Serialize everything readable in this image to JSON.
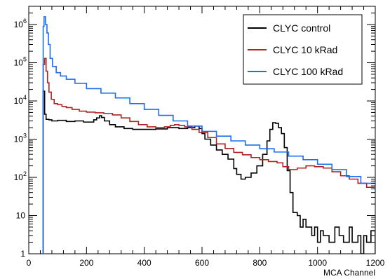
{
  "chart_data": {
    "type": "line",
    "xlabel": "MCA Channel",
    "ylabel": "",
    "xlim": [
      0,
      1200
    ],
    "ylim": [
      1,
      3000000
    ],
    "yscale": "log",
    "grid": false,
    "legend_position": "top-right",
    "x_ticks": [
      0,
      200,
      400,
      600,
      800,
      1000,
      1200
    ],
    "x_tick_labels": [
      "0",
      "200",
      "400",
      "600",
      "800",
      "1000",
      "1200"
    ],
    "y_ticks": [
      1,
      10,
      100,
      1000,
      10000,
      100000,
      1000000
    ],
    "y_tick_labels": [
      {
        "base": "1",
        "exp": ""
      },
      {
        "base": "10",
        "exp": ""
      },
      {
        "base": "10",
        "exp": "2"
      },
      {
        "base": "10",
        "exp": "3"
      },
      {
        "base": "10",
        "exp": "4"
      },
      {
        "base": "10",
        "exp": "5"
      },
      {
        "base": "10",
        "exp": "6"
      }
    ],
    "series": [
      {
        "name": "CLYC control",
        "color": "#000000",
        "points": [
          [
            50,
            1
          ],
          [
            50,
            18000
          ],
          [
            55,
            18000
          ],
          [
            55,
            4500
          ],
          [
            60,
            4500
          ],
          [
            60,
            3300
          ],
          [
            70,
            3200
          ],
          [
            80,
            3000
          ],
          [
            100,
            3100
          ],
          [
            130,
            2900
          ],
          [
            160,
            3000
          ],
          [
            190,
            2800
          ],
          [
            210,
            2800
          ],
          [
            225,
            3200
          ],
          [
            235,
            3600
          ],
          [
            245,
            4100
          ],
          [
            252,
            3700
          ],
          [
            262,
            3000
          ],
          [
            280,
            2400
          ],
          [
            300,
            2100
          ],
          [
            330,
            1900
          ],
          [
            360,
            1800
          ],
          [
            400,
            1800
          ],
          [
            440,
            1850
          ],
          [
            480,
            2000
          ],
          [
            520,
            1900
          ],
          [
            550,
            2000
          ],
          [
            575,
            2200
          ],
          [
            590,
            1900
          ],
          [
            600,
            1400
          ],
          [
            610,
            1000
          ],
          [
            630,
            700
          ],
          [
            650,
            520
          ],
          [
            670,
            400
          ],
          [
            690,
            300
          ],
          [
            710,
            170
          ],
          [
            720,
            120
          ],
          [
            735,
            90
          ],
          [
            750,
            100
          ],
          [
            770,
            130
          ],
          [
            790,
            200
          ],
          [
            810,
            400
          ],
          [
            825,
            900
          ],
          [
            835,
            1800
          ],
          [
            845,
            2700
          ],
          [
            855,
            2600
          ],
          [
            865,
            2000
          ],
          [
            875,
            1400
          ],
          [
            885,
            600
          ],
          [
            895,
            150
          ],
          [
            905,
            40
          ],
          [
            915,
            12
          ],
          [
            930,
            10
          ],
          [
            940,
            5
          ],
          [
            950,
            8
          ],
          [
            960,
            5
          ],
          [
            980,
            3
          ],
          [
            990,
            5
          ],
          [
            1000,
            2
          ],
          [
            1010,
            4
          ],
          [
            1020,
            3
          ],
          [
            1040,
            2
          ],
          [
            1060,
            5
          ],
          [
            1075,
            3
          ],
          [
            1090,
            2
          ],
          [
            1110,
            5
          ],
          [
            1120,
            2
          ],
          [
            1140,
            3
          ],
          [
            1150,
            1
          ],
          [
            1160,
            3
          ],
          [
            1170,
            2
          ],
          [
            1185,
            4
          ],
          [
            1200,
            1
          ]
        ]
      },
      {
        "name": "CLYC 10 kRad",
        "color": "#b22222",
        "points": [
          [
            50,
            1
          ],
          [
            50,
            90000
          ],
          [
            55,
            130000
          ],
          [
            60,
            60000
          ],
          [
            65,
            30000
          ],
          [
            70,
            17000
          ],
          [
            78,
            11000
          ],
          [
            88,
            8500
          ],
          [
            100,
            8000
          ],
          [
            115,
            7200
          ],
          [
            130,
            6700
          ],
          [
            150,
            6000
          ],
          [
            175,
            5400
          ],
          [
            200,
            5100
          ],
          [
            230,
            4900
          ],
          [
            260,
            4700
          ],
          [
            290,
            4300
          ],
          [
            320,
            3600
          ],
          [
            350,
            2900
          ],
          [
            380,
            2400
          ],
          [
            410,
            2100
          ],
          [
            440,
            2000
          ],
          [
            470,
            2100
          ],
          [
            490,
            2300
          ],
          [
            505,
            2400
          ],
          [
            520,
            2300
          ],
          [
            540,
            2100
          ],
          [
            565,
            1800
          ],
          [
            590,
            1500
          ],
          [
            620,
            1100
          ],
          [
            650,
            750
          ],
          [
            680,
            570
          ],
          [
            710,
            450
          ],
          [
            740,
            390
          ],
          [
            770,
            330
          ],
          [
            800,
            290
          ],
          [
            830,
            260
          ],
          [
            860,
            240
          ],
          [
            880,
            190
          ],
          [
            900,
            160
          ],
          [
            930,
            175
          ],
          [
            960,
            200
          ],
          [
            990,
            190
          ],
          [
            1020,
            175
          ],
          [
            1050,
            140
          ],
          [
            1080,
            110
          ],
          [
            1110,
            90
          ],
          [
            1140,
            70
          ],
          [
            1170,
            55
          ],
          [
            1200,
            45
          ]
        ]
      },
      {
        "name": "CLYC 100 kRad",
        "color": "#1a6ef0",
        "points": [
          [
            50,
            1
          ],
          [
            50,
            900000
          ],
          [
            53,
            1600000
          ],
          [
            58,
            1000000
          ],
          [
            63,
            600000
          ],
          [
            68,
            300000
          ],
          [
            74,
            130000
          ],
          [
            82,
            80000
          ],
          [
            95,
            55000
          ],
          [
            110,
            45000
          ],
          [
            130,
            37000
          ],
          [
            160,
            29000
          ],
          [
            200,
            21000
          ],
          [
            250,
            16000
          ],
          [
            300,
            12000
          ],
          [
            350,
            8500
          ],
          [
            400,
            6000
          ],
          [
            450,
            4200
          ],
          [
            500,
            3000
          ],
          [
            550,
            2200
          ],
          [
            600,
            1600
          ],
          [
            650,
            1200
          ],
          [
            700,
            900
          ],
          [
            750,
            700
          ],
          [
            800,
            560
          ],
          [
            850,
            460
          ],
          [
            900,
            360
          ],
          [
            950,
            290
          ],
          [
            1000,
            220
          ],
          [
            1050,
            160
          ],
          [
            1100,
            105
          ],
          [
            1150,
            70
          ],
          [
            1200,
            45
          ]
        ]
      }
    ]
  }
}
